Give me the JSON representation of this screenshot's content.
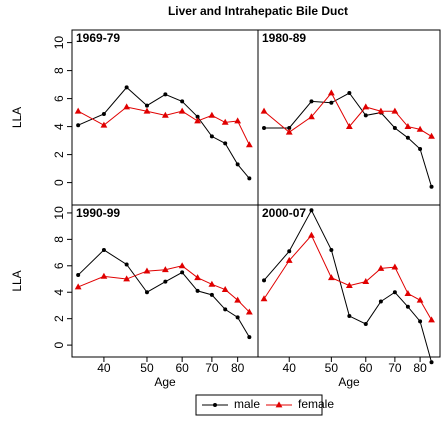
{
  "chart_data": {
    "type": "line",
    "title": "Liver and Intrahepatic Bile Duct",
    "xlabel": "Age",
    "ylabel": "LLA",
    "x": [
      35,
      40,
      45,
      50,
      55,
      60,
      65,
      70,
      75,
      80,
      85
    ],
    "xlim": [
      33.9,
      88.9
    ],
    "xticks": [
      40,
      50,
      60,
      70,
      80
    ],
    "xlog": true,
    "series": [
      {
        "name": "male",
        "color": "#000000",
        "marker": "circle"
      },
      {
        "name": "female",
        "color": "#e00000",
        "marker": "triangle"
      }
    ],
    "panels": [
      {
        "label": "1969-79",
        "ylim": [
          -1.6,
          10.9
        ],
        "yticks": [
          0,
          2,
          4,
          6,
          8,
          10
        ],
        "values": [
          [
            4.1,
            4.9,
            6.8,
            5.5,
            6.3,
            5.8,
            4.7,
            3.3,
            2.8,
            1.3,
            0.3
          ],
          [
            5.1,
            4.1,
            5.4,
            5.1,
            4.8,
            5.1,
            4.4,
            4.8,
            4.3,
            4.4,
            2.7
          ]
        ]
      },
      {
        "label": "1980-89",
        "ylim": [
          -1.6,
          10.9
        ],
        "yticks": [
          0,
          2,
          4,
          6,
          8,
          10
        ],
        "values": [
          [
            3.9,
            3.9,
            5.8,
            5.7,
            6.4,
            4.8,
            5.0,
            3.9,
            3.2,
            2.4,
            -0.3
          ],
          [
            5.1,
            3.6,
            4.7,
            6.4,
            4.0,
            5.4,
            5.1,
            5.1,
            4.0,
            3.8,
            3.3
          ]
        ]
      },
      {
        "label": "1990-99",
        "ylim": [
          -0.9,
          10.6
        ],
        "yticks": [
          0,
          2,
          4,
          6,
          8,
          10
        ],
        "values": [
          [
            5.3,
            7.2,
            6.1,
            4.0,
            4.8,
            5.5,
            4.1,
            3.8,
            2.7,
            2.1,
            0.6
          ],
          [
            4.4,
            5.2,
            5.0,
            5.6,
            5.7,
            6.0,
            5.1,
            4.6,
            4.2,
            3.4,
            2.5
          ]
        ]
      },
      {
        "label": "2000-07",
        "ylim": [
          -0.9,
          10.6
        ],
        "yticks": [
          0,
          2,
          4,
          6,
          8,
          10
        ],
        "values": [
          [
            4.9,
            7.1,
            10.2,
            7.2,
            2.2,
            1.6,
            3.3,
            4.0,
            2.9,
            1.8,
            -1.3
          ],
          [
            3.5,
            6.4,
            8.3,
            5.1,
            4.5,
            4.8,
            5.8,
            5.9,
            3.9,
            3.4,
            1.9
          ]
        ]
      }
    ]
  }
}
